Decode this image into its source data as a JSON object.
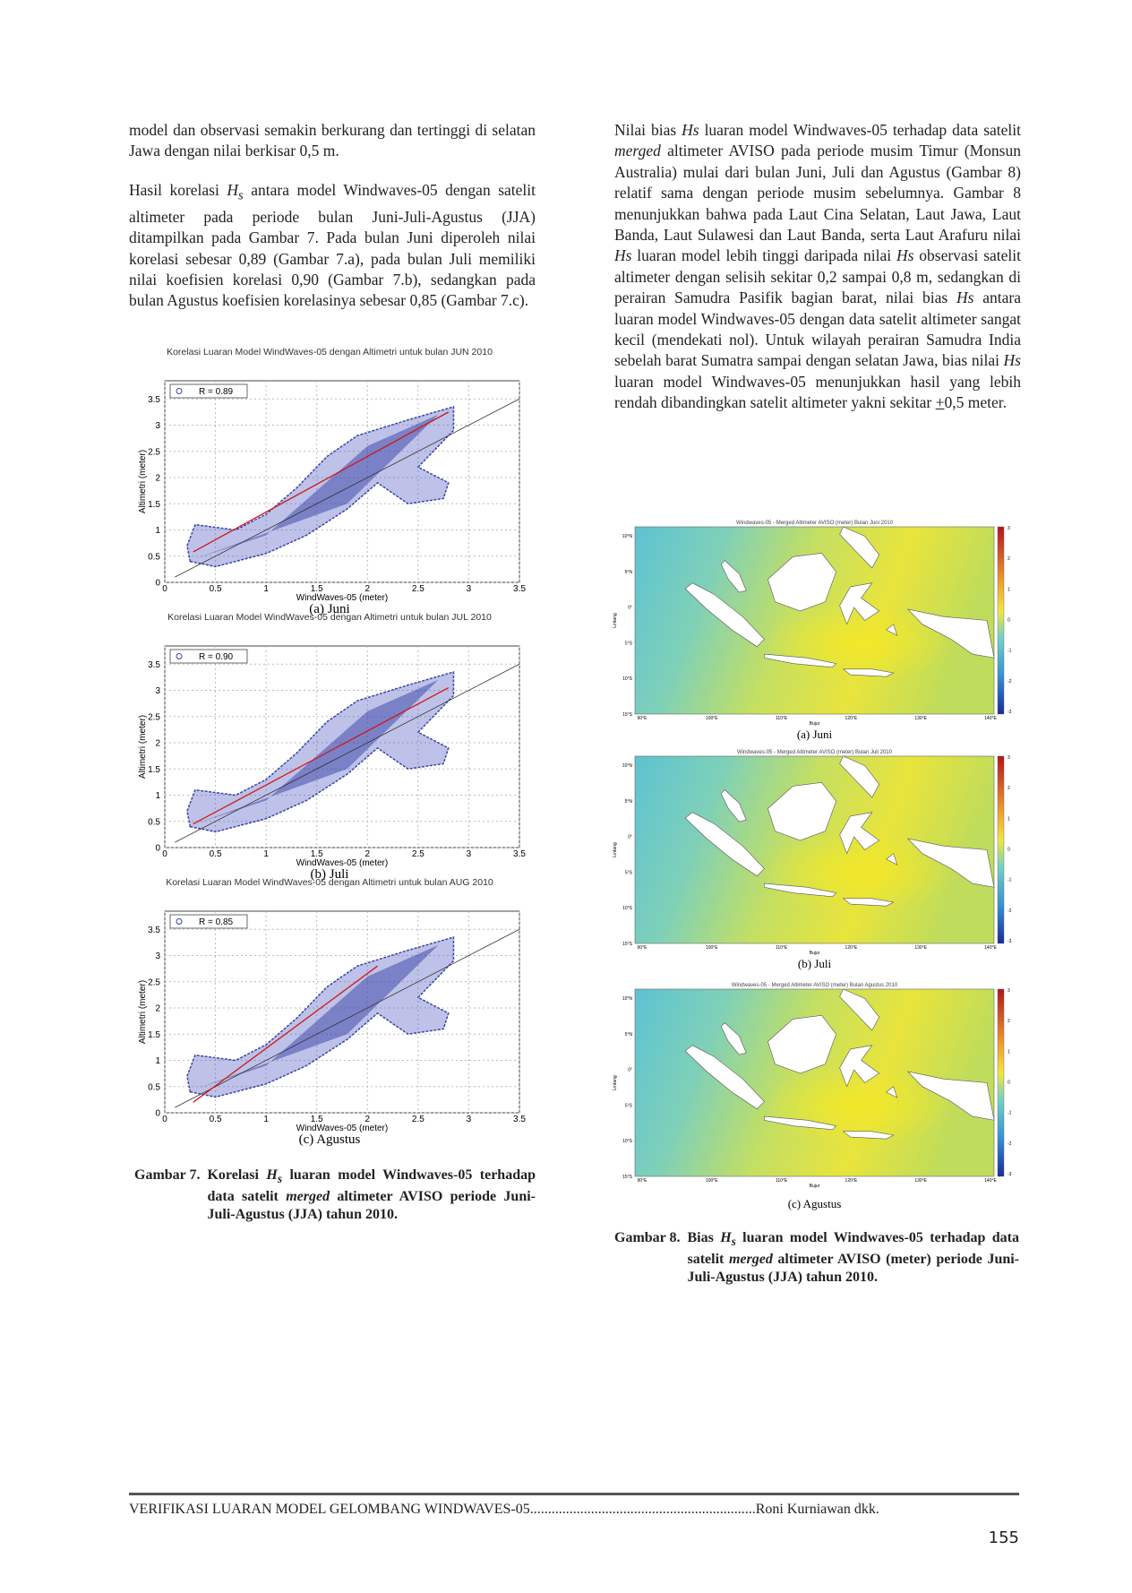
{
  "left_column": {
    "paragraph_1": "model dan observasi semakin berkurang dan tertinggi di selatan Jawa dengan nilai berkisar 0,5 m.",
    "paragraph_2": [
      "Hasil korelasi ",
      "H",
      "s",
      " antara model Windwaves-05 dengan satelit altimeter pada periode bulan Juni-Juli-Agustus (JJA) ditampilkan pada Gambar 7. Pada bulan Juni diperoleh nilai korelasi sebesar 0,89 (Gambar 7.a), pada bulan Juli memiliki nilai koefisien korelasi 0,90 (Gambar 7.b), sedangkan pada bulan Agustus koefisien korelasinya sebesar 0,85 (Gambar 7.c)."
    ]
  },
  "figure_7": {
    "panels": [
      {
        "title": "Korelasi Luaran Model WindWaves-05 dengan Altimetri untuk bulan JUN 2010",
        "legend": "R = 0.89",
        "caption": "(a) Juni"
      },
      {
        "title": "Korelasi Luaran Model WindWaves-05 dengan Altimetri untuk bulan JUL 2010",
        "legend": "R = 0.90",
        "caption": "(b) Juli"
      },
      {
        "title": "Korelasi Luaran Model WindWaves-05 dengan Altimetri untuk bulan AUG 2010",
        "legend": "R = 0.85",
        "caption": "(c) Agustus"
      }
    ],
    "x_label": "WindWaves-05 (meter)",
    "y_label": "Altimetri (meter)",
    "x_ticks": [
      "0",
      "0.5",
      "1",
      "1.5",
      "2",
      "2.5",
      "3",
      "3.5"
    ],
    "y_ticks": [
      "0",
      "0.5",
      "1",
      "1.5",
      "2",
      "2.5",
      "3",
      "3.5"
    ],
    "caption_label": "Gambar 7.",
    "caption": [
      "Korelasi ",
      "H",
      "s",
      " luaran model Windwaves-05 terhadap data satelit ",
      "merged",
      " altimeter AVISO periode Juni-Juli-Agustus (JJA) tahun 2010."
    ]
  },
  "right_column": {
    "paragraph_1": [
      "Nilai bias ",
      "Hs",
      " luaran model Windwaves-05 terhadap data satelit ",
      "merged",
      " altimeter AVISO pada periode musim Timur (Monsun Australia) mulai dari bulan Juni, Juli dan Agustus (Gambar 8) relatif sama dengan periode musim sebelumnya. Gambar 8 menunjukkan bahwa pada Laut Cina Selatan, Laut Jawa, Laut Banda, Laut Sulawesi dan Laut Banda, serta Laut Arafuru nilai ",
      "Hs",
      " luaran model lebih tinggi daripada nilai ",
      "Hs",
      " observasi satelit altimeter dengan selisih sekitar 0,2 sampai 0,8 m, sedangkan di perairan Samudra Pasifik bagian barat, nilai bias ",
      "Hs",
      " antara luaran model Windwaves-05 dengan data satelit altimeter sangat kecil (mendekati nol). Untuk wilayah perairan Samudra India sebelah barat Sumatra sampai dengan selatan Jawa, bias nilai ",
      "Hs",
      " luaran model Windwaves-05 menunjukkan hasil yang lebih rendah dibandingkan satelit altimeter yakni sekitar ",
      "+",
      "0,5 meter."
    ]
  },
  "figure_8": {
    "panels": [
      {
        "title": "Windwaves-05 - Merged Altimeter AVISO (meter) Bulan Juni 2010",
        "caption": "(a) Juni"
      },
      {
        "title": "Windwaves-05 - Merged Altimeter AVISO (meter) Bulan Juli 2010",
        "caption": "(b) Juli"
      },
      {
        "title": "Windwaves-05 - Merged Altimeter AVISO (meter) Bulan Agustus 2010",
        "caption": "(c) Agustus"
      }
    ],
    "lat_ticks": [
      "10°N",
      "5°N",
      "0°",
      "5°S",
      "10°S",
      "15°S"
    ],
    "lon_ticks": [
      "90°E",
      "100°E",
      "110°E",
      "120°E",
      "130°E",
      "140°E"
    ],
    "x_label": "Bujur",
    "y_label": "Lintang",
    "colorbar_ticks": [
      "3",
      "2",
      "1",
      "0",
      "-1",
      "-2",
      "-3"
    ],
    "caption_label": "Gambar 8.",
    "caption": [
      "Bias ",
      "H",
      "s",
      " luaran model Windwaves-05 terhadap data satelit ",
      "merged",
      " altimeter AVISO (meter) periode Juni-Juli-Agustus (JJA) tahun 2010."
    ]
  },
  "footer": {
    "running_title": "VERIFIKASI LUARAN MODEL GELOMBANG WINDWAVES-05...............................................................",
    "author": "Roni Kurniawan dkk.",
    "page_number": "155"
  }
}
